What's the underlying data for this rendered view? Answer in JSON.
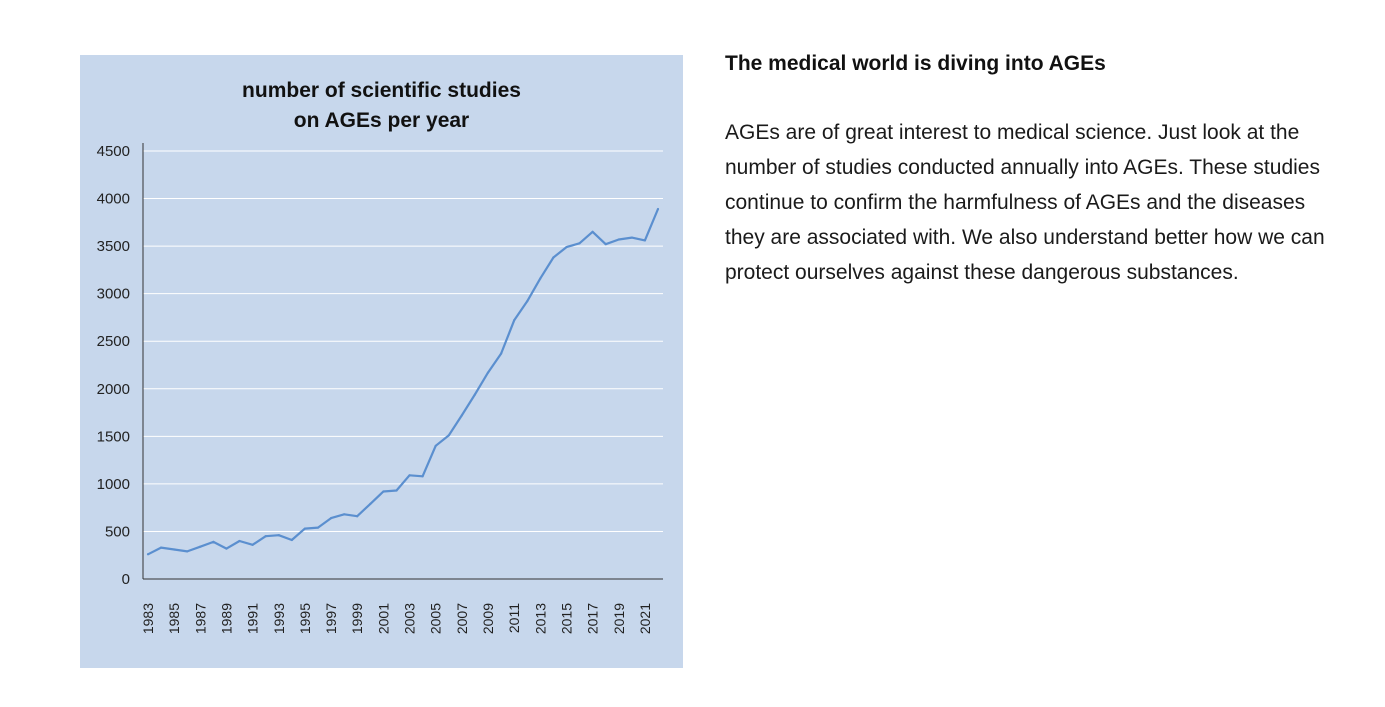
{
  "article": {
    "heading": "The medical world is diving into AGEs",
    "body": "AGEs are of great interest to medical science. Just look at the number of studies conducted annually into AGEs. These studies continue to confirm the harmfulness of AGEs and the diseases they are associated with. We also understand better how we can protect ourselves against these dangerous substances."
  },
  "chart_data": {
    "type": "line",
    "title_lines": [
      "number of scientific studies",
      "on AGEs per year"
    ],
    "xlabel": "",
    "ylabel": "",
    "ylim": [
      0,
      4500
    ],
    "yticks": [
      0,
      500,
      1000,
      1500,
      2000,
      2500,
      3000,
      3500,
      4000,
      4500
    ],
    "xtick_labels": [
      "1983",
      "1985",
      "1987",
      "1989",
      "1991",
      "1993",
      "1995",
      "1997",
      "1999",
      "2001",
      "2003",
      "2005",
      "2007",
      "2009",
      "2011",
      "2013",
      "2015",
      "2017",
      "2019",
      "2021"
    ],
    "grid": true,
    "legend": false,
    "colors": {
      "background": "#c7d7ec",
      "line": "#5b8fcf",
      "grid": "#ffffff",
      "axis": "#333333"
    },
    "x": [
      1983,
      1984,
      1985,
      1986,
      1987,
      1988,
      1989,
      1990,
      1991,
      1992,
      1993,
      1994,
      1995,
      1996,
      1997,
      1998,
      1999,
      2000,
      2001,
      2002,
      2003,
      2004,
      2005,
      2006,
      2007,
      2008,
      2009,
      2010,
      2011,
      2012,
      2013,
      2014,
      2015,
      2016,
      2017,
      2018,
      2019,
      2020,
      2021,
      2022
    ],
    "values": [
      260,
      330,
      310,
      290,
      340,
      390,
      320,
      400,
      360,
      450,
      460,
      410,
      530,
      540,
      640,
      680,
      660,
      790,
      920,
      930,
      1090,
      1080,
      1400,
      1510,
      1720,
      1940,
      2170,
      2370,
      2720,
      2920,
      3160,
      3380,
      3490,
      3530,
      3650,
      3520,
      3570,
      3590,
      3560,
      3890
    ]
  }
}
